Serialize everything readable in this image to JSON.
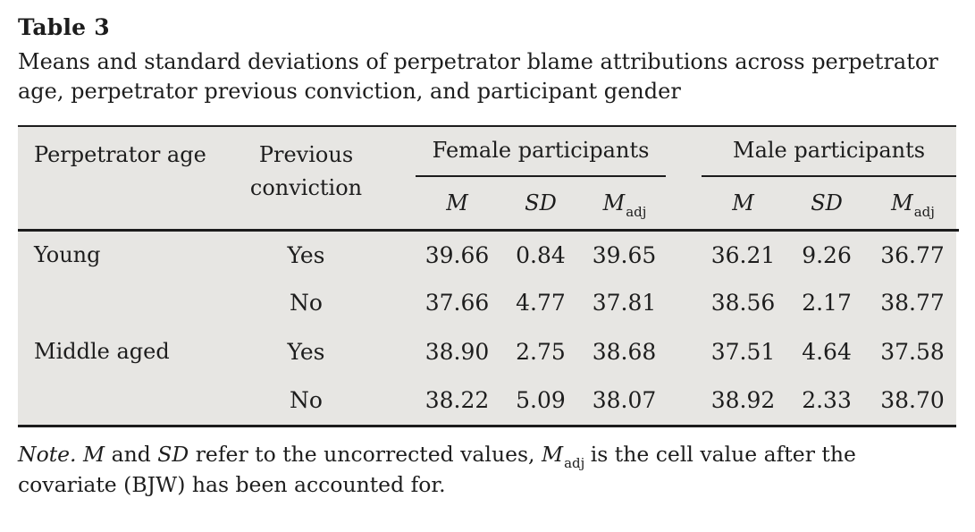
{
  "colors": {
    "page_background": "#ffffff",
    "table_background": "#e7e6e3",
    "rule_color": "#1c1c1c",
    "text_color": "#1d1d1d"
  },
  "title": "Table 3",
  "caption": {
    "line1": "Means and standard deviations of perpetrator blame attributions across perpetrator",
    "line2": "age, perpetrator previous conviction, and participant gender"
  },
  "table": {
    "headers": {
      "perpetrator_age": "Perpetrator age",
      "previous_conviction_line1": "Previous",
      "previous_conviction_line2": "conviction",
      "female_group": "Female participants",
      "male_group": "Male participants",
      "m": "M",
      "sd": "SD",
      "m_adj_base": "M",
      "m_adj_sub": "adj"
    },
    "rows": [
      {
        "age": "Young",
        "conviction": "Yes",
        "female": {
          "m": "39.66",
          "sd": "0.84",
          "m_adj": "39.65"
        },
        "male": {
          "m": "36.21",
          "sd": "9.26",
          "m_adj": "36.77"
        }
      },
      {
        "age": "",
        "conviction": "No",
        "female": {
          "m": "37.66",
          "sd": "4.77",
          "m_adj": "37.81"
        },
        "male": {
          "m": "38.56",
          "sd": "2.17",
          "m_adj": "38.77"
        }
      },
      {
        "age": "Middle aged",
        "conviction": "Yes",
        "female": {
          "m": "38.90",
          "sd": "2.75",
          "m_adj": "38.68"
        },
        "male": {
          "m": "37.51",
          "sd": "4.64",
          "m_adj": "37.58"
        }
      },
      {
        "age": "",
        "conviction": "No",
        "female": {
          "m": "38.22",
          "sd": "5.09",
          "m_adj": "38.07"
        },
        "male": {
          "m": "38.92",
          "sd": "2.33",
          "m_adj": "38.70"
        }
      }
    ]
  },
  "note": {
    "label": "Note.",
    "seg_m": "M",
    "seg_and": "and",
    "seg_sd": "SD",
    "seg_refer": "refer to the uncorrected values,",
    "seg_madj_base": "M",
    "seg_madj_sub": "adj",
    "seg_line1_tail": "is the cell value after the",
    "line2": "covariate (BJW) has been accounted for."
  }
}
